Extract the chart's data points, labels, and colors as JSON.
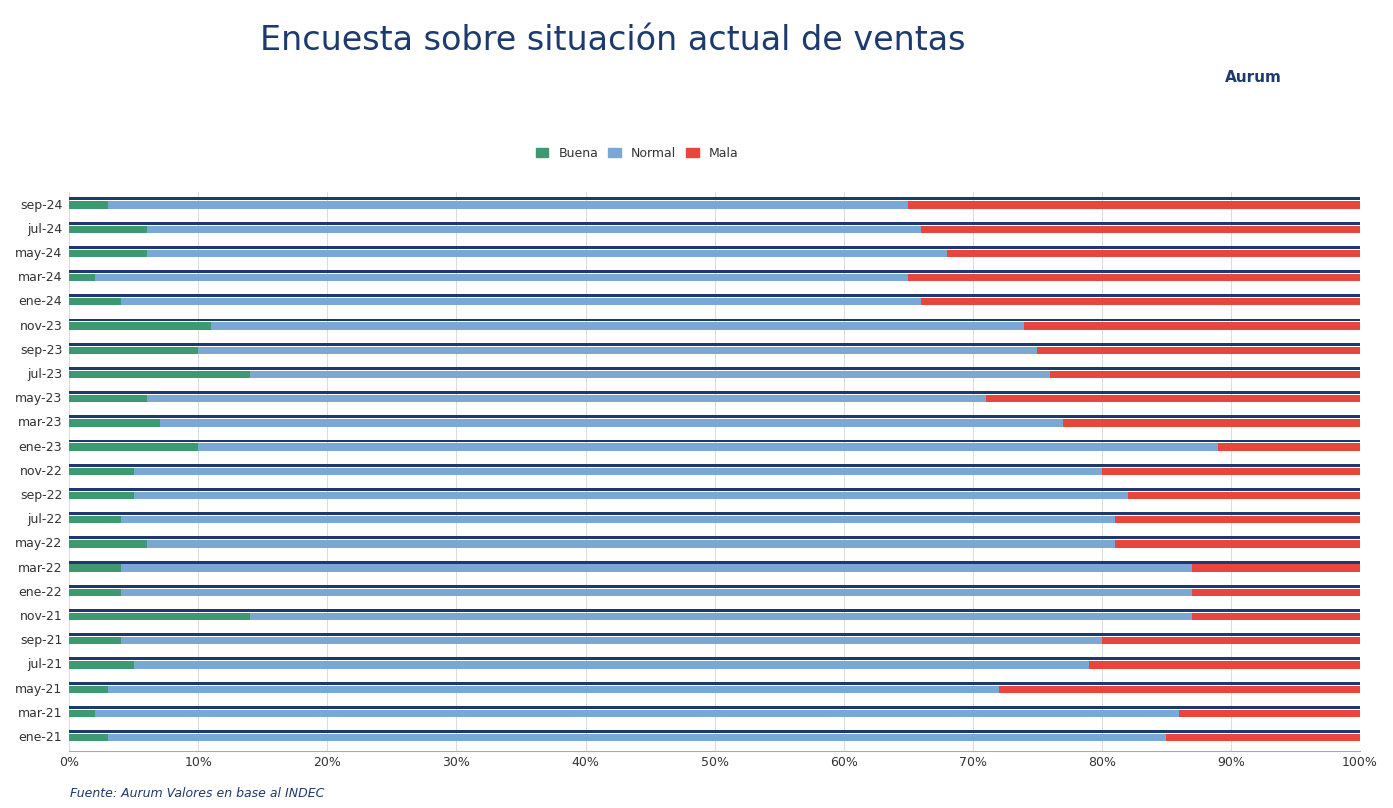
{
  "title": "Encuesta sobre situación actual de ventas",
  "source": "Fuente: Aurum Valores en base al INDEC",
  "legend_labels": [
    "Buena",
    "Normal",
    "Mala"
  ],
  "colors": {
    "buena": "#3D9970",
    "normal": "#7BA7D4",
    "mala": "#E8463C",
    "dark_navy": "#1C3A6E"
  },
  "background_color": "#FFFFFF",
  "categories": [
    "ene-21",
    "mar-21",
    "may-21",
    "jul-21",
    "sep-21",
    "nov-21",
    "ene-22",
    "mar-22",
    "may-22",
    "jul-22",
    "sep-22",
    "nov-22",
    "ene-23",
    "mar-23",
    "may-23",
    "jul-23",
    "sep-23",
    "nov-23",
    "ene-24",
    "mar-24",
    "may-24",
    "jul-24",
    "sep-24"
  ],
  "buena": [
    3,
    2,
    3,
    5,
    4,
    14,
    4,
    4,
    6,
    4,
    5,
    5,
    10,
    7,
    6,
    14,
    10,
    11,
    4,
    2,
    6,
    6,
    3
  ],
  "normal": [
    82,
    84,
    69,
    74,
    76,
    73,
    83,
    83,
    75,
    77,
    77,
    75,
    79,
    70,
    65,
    62,
    65,
    63,
    62,
    63,
    62,
    60,
    62
  ],
  "mala": [
    15,
    14,
    28,
    21,
    20,
    13,
    13,
    13,
    19,
    19,
    18,
    20,
    11,
    23,
    29,
    24,
    25,
    26,
    34,
    35,
    32,
    34,
    35
  ],
  "title_fontsize": 24,
  "legend_fontsize": 9,
  "tick_fontsize": 9,
  "source_fontsize": 9
}
